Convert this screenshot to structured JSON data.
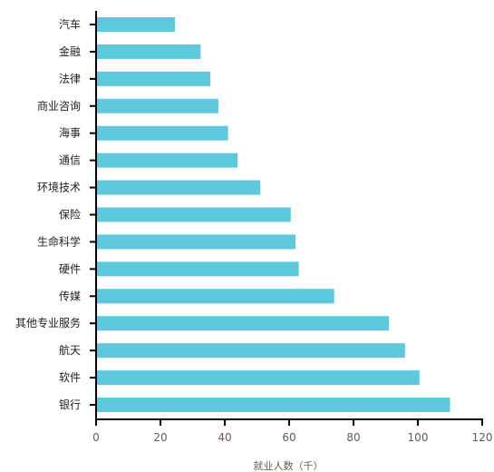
{
  "chart_data": {
    "type": "bar",
    "orientation": "horizontal",
    "categories": [
      "汽车",
      "金融",
      "法律",
      "商业咨询",
      "海事",
      "通信",
      "环境技术",
      "保险",
      "生命科学",
      "硬件",
      "传媒",
      "其他专业服务",
      "航天",
      "软件",
      "银行"
    ],
    "values": [
      24.5,
      32.5,
      35.5,
      38.0,
      41.0,
      44.0,
      51.0,
      60.5,
      62.0,
      63.0,
      74.0,
      91.0,
      96.0,
      100.5,
      110.0
    ],
    "title": "",
    "xlabel": "就业人数（千）",
    "ylabel": "",
    "xlim": [
      0,
      120
    ],
    "xticks": [
      0,
      20,
      40,
      60,
      80,
      100,
      120
    ],
    "grid": false,
    "bar_color": "#5ec9dc",
    "axis_color": "#000000",
    "tick_label_color": "#6b5a4e"
  }
}
